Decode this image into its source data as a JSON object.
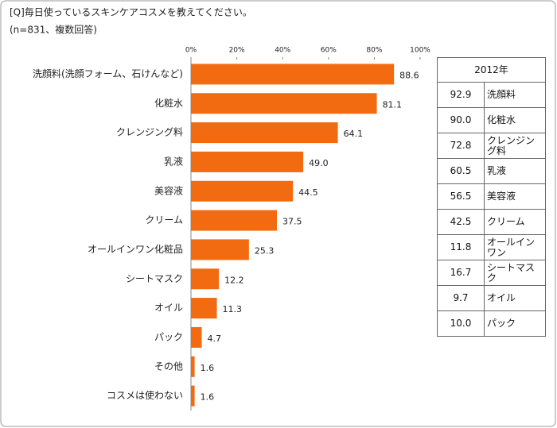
{
  "chart_data": {
    "type": "bar",
    "orientation": "horizontal",
    "title": "[Q]毎日使っているスキンケアコスメを教えてください。",
    "subtitle": "(n=831、複数回答)",
    "categories": [
      "洗顔料(洗顔フォーム、石けんなど)",
      "化粧水",
      "クレンジング料",
      "乳液",
      "美容液",
      "クリーム",
      "オールインワン化粧品",
      "シートマスク",
      "オイル",
      "パック",
      "その他",
      "コスメは使わない"
    ],
    "values": [
      88.6,
      81.1,
      64.1,
      49.0,
      44.5,
      37.5,
      25.3,
      12.2,
      11.3,
      4.7,
      1.6,
      1.6
    ],
    "value_labels": [
      "88.6",
      "81.1",
      "64.1",
      "49.0",
      "44.5",
      "37.5",
      "25.3",
      "12.2",
      "11.3",
      "4.7",
      "1.6",
      "1.6"
    ],
    "color": "#f26b10",
    "xlim": [
      0,
      100
    ],
    "xticks": [
      {
        "value": 0,
        "label": "0%"
      },
      {
        "value": 20,
        "label": "20%"
      },
      {
        "value": 40,
        "label": "40%"
      },
      {
        "value": 60,
        "label": "60%"
      },
      {
        "value": 80,
        "label": "80%"
      },
      {
        "value": 100,
        "label": "100%"
      }
    ],
    "grid": false
  },
  "table": {
    "header": "2012年",
    "rows": [
      [
        "92.9",
        "洗顔料"
      ],
      [
        "90.0",
        "化粧水"
      ],
      [
        "72.8",
        "クレンジング料"
      ],
      [
        "60.5",
        "乳液"
      ],
      [
        "56.5",
        "美容液"
      ],
      [
        "42.5",
        "クリーム"
      ],
      [
        "11.8",
        "オールインワン"
      ],
      [
        "16.7",
        "シートマスク"
      ],
      [
        "9.7",
        "オイル"
      ],
      [
        "10.0",
        "パック"
      ]
    ]
  }
}
